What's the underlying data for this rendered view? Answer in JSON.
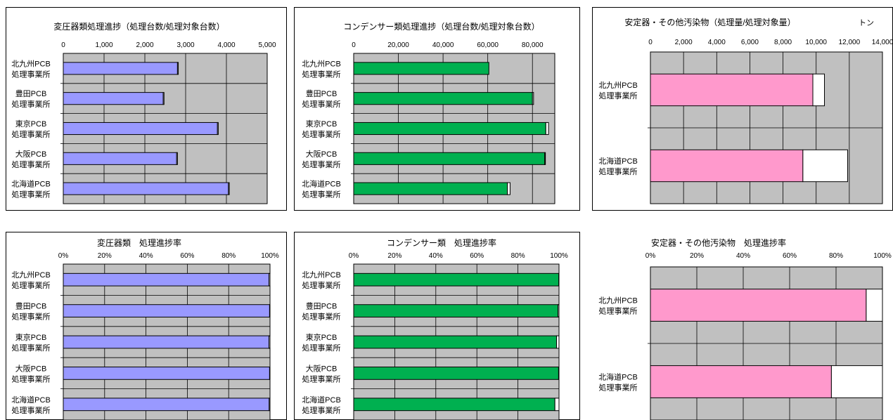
{
  "colors": {
    "plot_bg": "#c0c0c0",
    "frame": "#000000",
    "blue": "#9999ff",
    "green": "#00b050",
    "pink": "#ff99cc",
    "remainder": "#ffffff"
  },
  "chart_data": [
    {
      "type": "bar",
      "orientation": "horizontal",
      "stacked": true,
      "title": "変圧器類処理進捗（処理台数/処理対象台数）",
      "unit": "",
      "color": "blue",
      "xlim": [
        0,
        5000
      ],
      "ticks": [
        0,
        1000,
        2000,
        3000,
        4000,
        5000
      ],
      "tick_labels": [
        "0",
        "1,000",
        "2,000",
        "3,000",
        "4,000",
        "5,000"
      ],
      "categories": [
        {
          "line1": "北九州PCB",
          "line2": "処理事業所"
        },
        {
          "line1": "豊田PCB",
          "line2": "処理事業所"
        },
        {
          "line1": "東京PCB",
          "line2": "処理事業所"
        },
        {
          "line1": "大阪PCB",
          "line2": "処理事業所"
        },
        {
          "line1": "北海道PCB",
          "line2": "処理事業所"
        }
      ],
      "series": [
        {
          "values": [
            2800,
            2450,
            3780,
            2780,
            4050
          ]
        },
        {
          "values": [
            20,
            20,
            20,
            20,
            20
          ]
        }
      ]
    },
    {
      "type": "bar",
      "orientation": "horizontal",
      "stacked": true,
      "title": "コンデンサー類処理進捗（処理台数/処理対象台数）",
      "unit": "",
      "color": "green",
      "xlim": [
        0,
        90000
      ],
      "ticks": [
        0,
        20000,
        40000,
        60000,
        80000
      ],
      "tick_labels": [
        "0",
        "20,000",
        "40,000",
        "60,000",
        "80,000"
      ],
      "categories": [
        {
          "line1": "北九州PCB",
          "line2": "処理事業所"
        },
        {
          "line1": "豊田PCB",
          "line2": "処理事業所"
        },
        {
          "line1": "東京PCB",
          "line2": "処理事業所"
        },
        {
          "line1": "大阪PCB",
          "line2": "処理事業所"
        },
        {
          "line1": "北海道PCB",
          "line2": "処理事業所"
        }
      ],
      "series": [
        {
          "values": [
            60500,
            80000,
            86000,
            85500,
            68800
          ]
        },
        {
          "values": [
            0,
            500,
            1200,
            300,
            1200
          ]
        }
      ]
    },
    {
      "type": "bar",
      "orientation": "horizontal",
      "stacked": true,
      "title": "安定器・その他汚染物（処理量/処理対象量）",
      "unit": "トン",
      "color": "pink",
      "xlim": [
        0,
        14000
      ],
      "ticks": [
        0,
        2000,
        4000,
        6000,
        8000,
        10000,
        12000,
        14000
      ],
      "tick_labels": [
        "0",
        "2,000",
        "4,000",
        "6,000",
        "8,000",
        "10,000",
        "12,000",
        "14,000"
      ],
      "categories": [
        {
          "line1": "北九州PCB",
          "line2": "処理事業所"
        },
        {
          "line1": "北海道PCB",
          "line2": "処理事業所"
        }
      ],
      "series": [
        {
          "values": [
            9800,
            9200
          ]
        },
        {
          "values": [
            700,
            2700
          ]
        }
      ]
    },
    {
      "type": "bar",
      "orientation": "horizontal",
      "stacked": true,
      "title": "変圧器類　処理進捗率",
      "unit": "",
      "color": "blue",
      "xlim": [
        0,
        100
      ],
      "ticks": [
        0,
        20,
        40,
        60,
        80,
        100
      ],
      "tick_labels": [
        "0%",
        "20%",
        "40%",
        "60%",
        "80%",
        "100%"
      ],
      "categories": [
        {
          "line1": "北九州PCB",
          "line2": "処理事業所"
        },
        {
          "line1": "豊田PCB",
          "line2": "処理事業所"
        },
        {
          "line1": "東京PCB",
          "line2": "処理事業所"
        },
        {
          "line1": "大阪PCB",
          "line2": "処理事業所"
        },
        {
          "line1": "北海道PCB",
          "line2": "処理事業所"
        }
      ],
      "series": [
        {
          "values": [
            99.5,
            99.8,
            99.5,
            99.8,
            99.6
          ]
        },
        {
          "values": [
            0.5,
            0.2,
            0.5,
            0.2,
            0.4
          ]
        }
      ]
    },
    {
      "type": "bar",
      "orientation": "horizontal",
      "stacked": true,
      "title": "コンデンサー類　処理進捗率",
      "unit": "",
      "color": "green",
      "xlim": [
        0,
        100
      ],
      "ticks": [
        0,
        20,
        40,
        60,
        80,
        100
      ],
      "tick_labels": [
        "0%",
        "20%",
        "40%",
        "60%",
        "80%",
        "100%"
      ],
      "categories": [
        {
          "line1": "北九州PCB",
          "line2": "処理事業所"
        },
        {
          "line1": "豊田PCB",
          "line2": "処理事業所"
        },
        {
          "line1": "東京PCB",
          "line2": "処理事業所"
        },
        {
          "line1": "大阪PCB",
          "line2": "処理事業所"
        },
        {
          "line1": "北海道PCB",
          "line2": "処理事業所"
        }
      ],
      "series": [
        {
          "values": [
            99.9,
            99.5,
            98.8,
            99.8,
            98.0
          ]
        },
        {
          "values": [
            0.1,
            0.5,
            1.2,
            0.2,
            2.0
          ]
        }
      ]
    },
    {
      "type": "bar",
      "orientation": "horizontal",
      "stacked": true,
      "title": "安定器・その他汚染物　処理進捗率",
      "unit": "",
      "color": "pink",
      "xlim": [
        0,
        100
      ],
      "ticks": [
        0,
        20,
        40,
        60,
        80,
        100
      ],
      "tick_labels": [
        "0%",
        "20%",
        "40%",
        "60%",
        "80%",
        "100%"
      ],
      "categories": [
        {
          "line1": "北九州PCB",
          "line2": "処理事業所"
        },
        {
          "line1": "北海道PCB",
          "line2": "処理事業所"
        }
      ],
      "series": [
        {
          "values": [
            93,
            78
          ]
        },
        {
          "values": [
            7,
            22
          ]
        }
      ]
    }
  ]
}
